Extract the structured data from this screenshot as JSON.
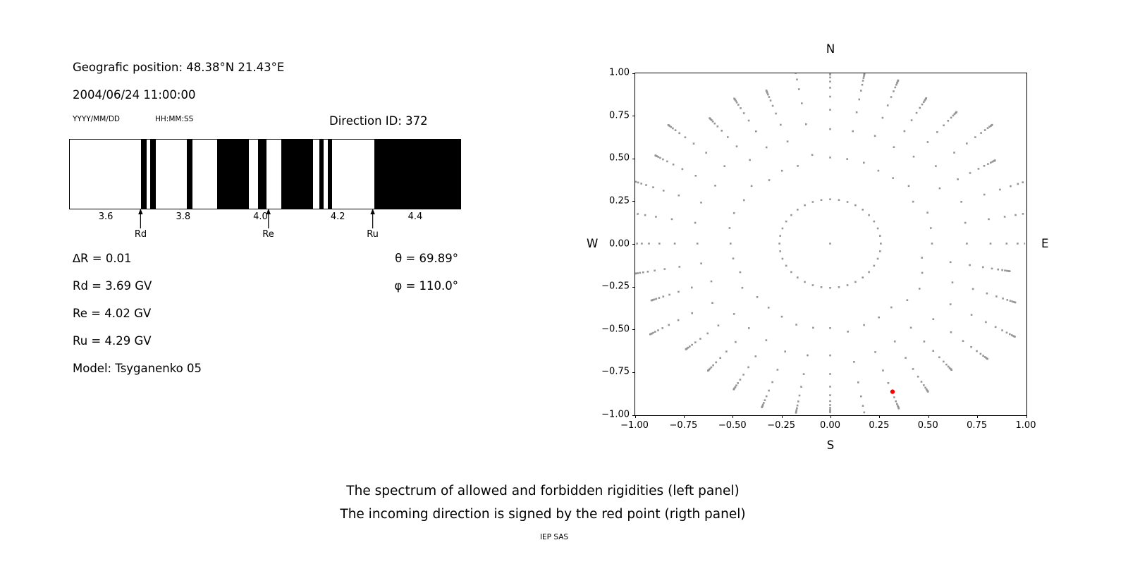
{
  "left_panel": {
    "geographic_position": "Geografic position: 48.38°N 21.43°E",
    "datetime": "2004/06/24 11:00:00",
    "date_format_label": "YYYY/MM/DD",
    "time_format_label": "HH:MM:SS",
    "direction_id": "Direction ID: 372",
    "params": {
      "delta_r": "∆R = 0.01",
      "theta": "θ = 69.89°",
      "rd": "Rd = 3.69 GV",
      "phi": "φ = 110.0°",
      "re": "Re = 4.02 GV",
      "ru": "Ru = 4.29 GV",
      "model": "Model: Tsyganenko 05"
    }
  },
  "right_panel": {
    "compass": {
      "north": "N",
      "south": "S",
      "west": "W",
      "east": "E"
    }
  },
  "caption": {
    "line1": "The spectrum of allowed and forbidden rigidities (left panel)",
    "line2": "The incoming direction is signed by the red point (rigth panel)",
    "credit": "IEP SAS"
  },
  "chart_data": [
    {
      "type": "bar",
      "description": "Penumbra spectrum: black bands = allowed rigidities, white = forbidden",
      "x_range": [
        3.505,
        4.515
      ],
      "x_ticks": [
        "3.6",
        "3.8",
        "4.0",
        "4.2",
        "4.4"
      ],
      "allowed_bands_gv": [
        [
          3.689,
          3.703
        ],
        [
          3.712,
          3.727
        ],
        [
          3.808,
          3.822
        ],
        [
          3.886,
          3.968
        ],
        [
          3.992,
          4.014
        ],
        [
          4.052,
          4.134
        ],
        [
          4.15,
          4.161
        ],
        [
          4.172,
          4.183
        ],
        [
          4.293,
          4.515
        ]
      ],
      "markers": [
        {
          "label": "Rd",
          "x": 3.69
        },
        {
          "label": "Re",
          "x": 4.02
        },
        {
          "label": "Ru",
          "x": 4.29
        }
      ],
      "band_color": "#000000"
    },
    {
      "type": "scatter",
      "description": "Sky map of trajectory directions; radial spokes of gray dots every 10 degrees of azimuth, red point marks the incoming direction",
      "xlim": [
        -1.0,
        1.0
      ],
      "ylim": [
        -1.0,
        1.0
      ],
      "x_ticks": [
        "−1.00",
        "−0.75",
        "−0.50",
        "−0.25",
        "0.00",
        "0.25",
        "0.50",
        "0.75",
        "1.00"
      ],
      "y_ticks": [
        "1.00",
        "0.75",
        "0.50",
        "0.25",
        "0.00",
        "−0.25",
        "−0.50",
        "−0.75",
        "−1.00"
      ],
      "grid": false,
      "dot_color": "#969696",
      "red_point": {
        "x": 0.32,
        "y": -0.87,
        "color": "#ff0000"
      },
      "spoke_pattern": {
        "azimuth_step_deg": 10,
        "azimuth_count": 36,
        "inner_radius": 0.26,
        "outer_radius_min": 0.94,
        "outer_radius_max": 1.12,
        "dots_per_spoke": 13,
        "convergence": 0.68,
        "center_dot": true
      }
    }
  ]
}
